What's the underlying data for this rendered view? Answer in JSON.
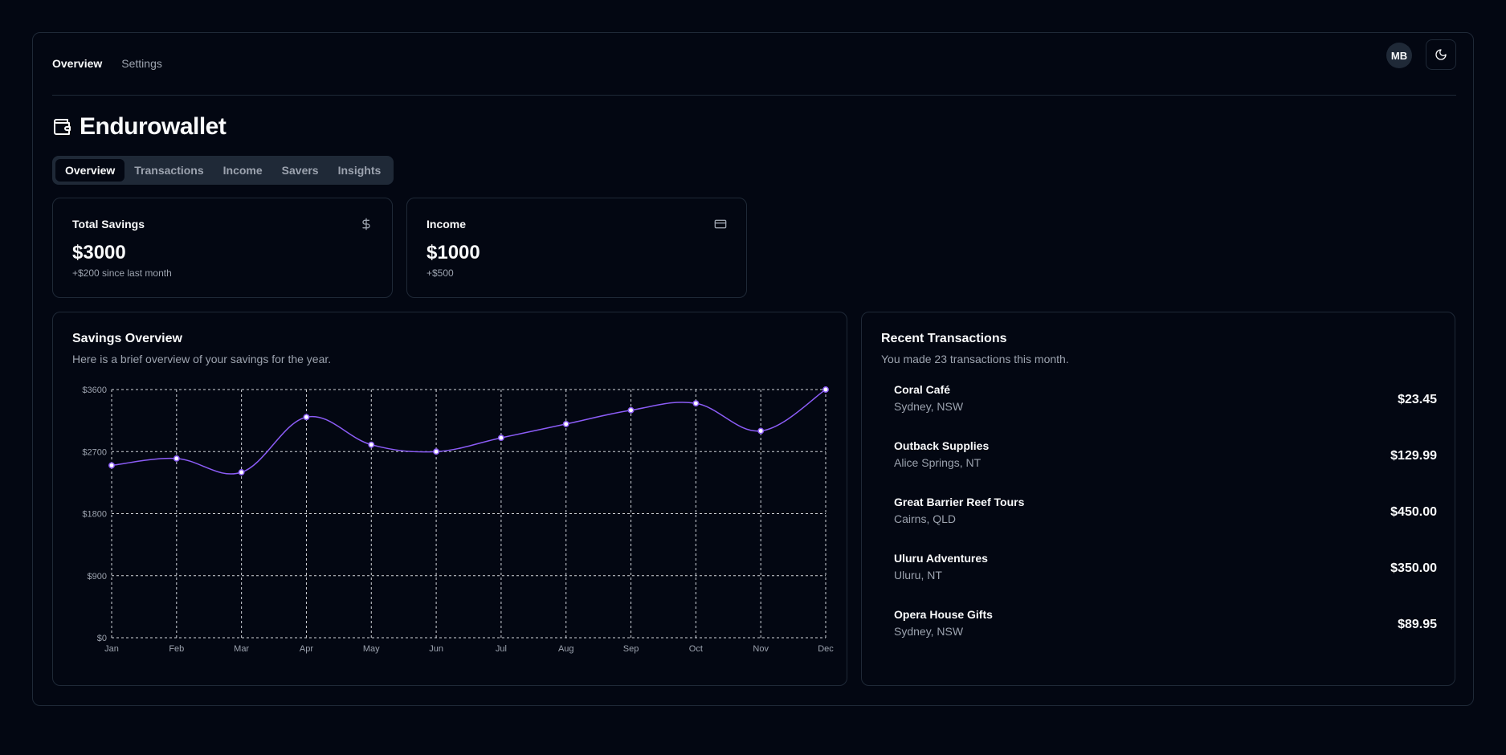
{
  "topnav": {
    "items": [
      "Overview",
      "Settings"
    ]
  },
  "user": {
    "initials": "MB"
  },
  "brand": {
    "name": "Endurowallet",
    "icon": "wallet-icon"
  },
  "tabs": [
    "Overview",
    "Transactions",
    "Income",
    "Savers",
    "Insights"
  ],
  "stats": [
    {
      "title": "Total Savings",
      "value": "$3000",
      "sub": "+$200 since last month",
      "icon": "dollar-icon"
    },
    {
      "title": "Income",
      "value": "$1000",
      "sub": "+$500",
      "icon": "credit-card-icon"
    }
  ],
  "savings": {
    "title": "Savings Overview",
    "description": "Here is a brief overview of your savings for the year."
  },
  "chart_data": {
    "type": "line",
    "categories": [
      "Jan",
      "Feb",
      "Mar",
      "Apr",
      "May",
      "Jun",
      "Jul",
      "Aug",
      "Sep",
      "Oct",
      "Nov",
      "Dec"
    ],
    "values": [
      2500,
      2600,
      2400,
      3200,
      2800,
      2700,
      2900,
      3100,
      3300,
      3400,
      3000,
      3600
    ],
    "yticks": [
      "$0",
      "$900",
      "$1800",
      "$2700",
      "$3600"
    ],
    "ylim": [
      0,
      3600
    ],
    "grid": true,
    "colors": {
      "line": "#8b5cf6",
      "point": "#ffffff",
      "grid": "#d1d5db"
    }
  },
  "transactions": {
    "title": "Recent Transactions",
    "description": "You made 23 transactions this month.",
    "items": [
      {
        "name": "Coral Café",
        "location": "Sydney, NSW",
        "amount": "$23.45"
      },
      {
        "name": "Outback Supplies",
        "location": "Alice Springs, NT",
        "amount": "$129.99"
      },
      {
        "name": "Great Barrier Reef Tours",
        "location": "Cairns, QLD",
        "amount": "$450.00"
      },
      {
        "name": "Uluru Adventures",
        "location": "Uluru, NT",
        "amount": "$350.00"
      },
      {
        "name": "Opera House Gifts",
        "location": "Sydney, NSW",
        "amount": "$89.95"
      }
    ]
  }
}
